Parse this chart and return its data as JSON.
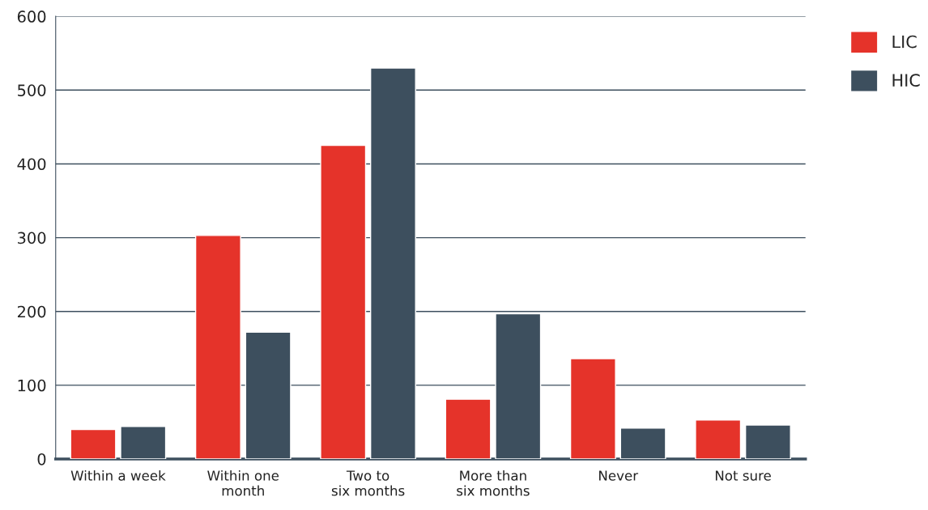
{
  "chart_data": {
    "type": "bar",
    "categories": [
      "Within a week",
      "Within one\nmonth",
      "Two to\nsix months",
      "More than\nsix months",
      "Never",
      "Not sure"
    ],
    "series": [
      {
        "name": "LIC",
        "color": "#e5332a",
        "values": [
          40,
          303,
          425,
          81,
          136,
          53
        ]
      },
      {
        "name": "HIC",
        "color": "#3d4f5e",
        "values": [
          44,
          172,
          530,
          197,
          42,
          46
        ]
      }
    ],
    "ylim": [
      0,
      600
    ],
    "yticks": [
      0,
      100,
      200,
      300,
      400,
      500,
      600
    ],
    "grid": "y",
    "legend": "top right"
  }
}
